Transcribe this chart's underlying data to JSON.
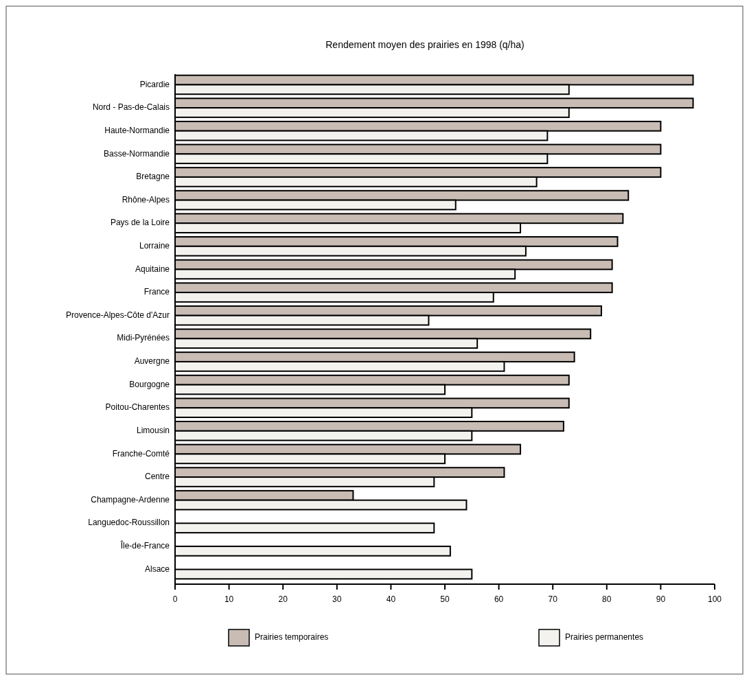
{
  "chart_data": {
    "type": "bar",
    "orientation": "horizontal",
    "title": "Rendement moyen des prairies en 1998 (q/ha)",
    "categories": [
      "Picardie",
      "Nord - Pas-de-Calais",
      "Haute-Normandie",
      "Basse-Normandie",
      "Bretagne",
      "Rhône-Alpes",
      "Pays de la Loire",
      "Lorraine",
      "Aquitaine",
      "France",
      "Provence-Alpes-Côte d'Azur",
      "Midi-Pyrénées",
      "Auvergne",
      "Bourgogne",
      "Poitou-Charentes",
      "Limousin",
      "Franche-Comté",
      "Centre",
      "Champagne-Ardenne",
      "Languedoc-Roussillon",
      "Île-de-France",
      "Alsace"
    ],
    "series": [
      {
        "name": "Prairies temporaires",
        "color": "#c8bcb4",
        "values": [
          96,
          96,
          90,
          90,
          90,
          84,
          83,
          82,
          81,
          81,
          79,
          77,
          74,
          73,
          73,
          72,
          64,
          61,
          33,
          null,
          null,
          null
        ]
      },
      {
        "name": "Prairies permanentes",
        "color": "#f4f2ef",
        "values": [
          73,
          73,
          69,
          69,
          67,
          52,
          64,
          65,
          63,
          59,
          47,
          56,
          61,
          50,
          55,
          55,
          50,
          48,
          54,
          48,
          51,
          55
        ]
      }
    ],
    "xlim": [
      0,
      100
    ],
    "xticks": [
      0,
      10,
      20,
      30,
      40,
      50,
      60,
      70,
      80,
      90,
      100
    ],
    "legend": "bottom"
  }
}
